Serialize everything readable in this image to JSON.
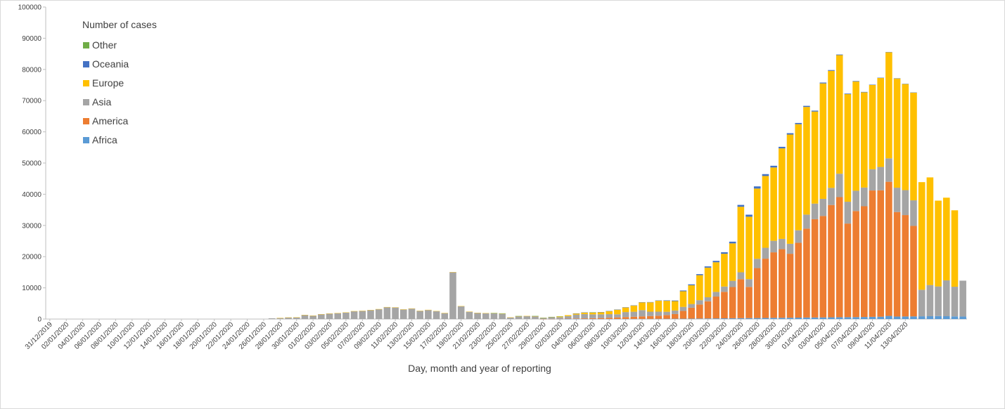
{
  "chart_data": {
    "type": "bar",
    "stacked": true,
    "title": "",
    "xlabel": "Day, month and year of reporting",
    "ylabel": "",
    "ylim": [
      0,
      100000
    ],
    "yticks": [
      0,
      10000,
      20000,
      30000,
      40000,
      50000,
      60000,
      70000,
      80000,
      90000,
      100000
    ],
    "grid": false,
    "legend_title": "Number of cases",
    "legend_placement": "top-left",
    "start_date": "31/12/2019",
    "x_tick_labels": [
      "31/12/2019",
      "02/01/2020",
      "04/01/2020",
      "06/01/2020",
      "08/01/2020",
      "10/01/2020",
      "12/01/2020",
      "14/01/2020",
      "16/01/2020",
      "18/01/2020",
      "20/01/2020",
      "22/01/2020",
      "24/01/2020",
      "26/01/2020",
      "28/01/2020",
      "30/01/2020",
      "01/02/2020",
      "03/02/2020",
      "05/02/2020",
      "07/02/2020",
      "09/02/2020",
      "11/02/2020",
      "13/02/2020",
      "15/02/2020",
      "17/02/2020",
      "19/02/2020",
      "21/02/2020",
      "23/02/2020",
      "25/02/2020",
      "27/02/2020",
      "29/02/2020",
      "02/03/2020",
      "04/03/2020",
      "06/03/2020",
      "08/03/2020",
      "10/03/2020",
      "12/03/2020",
      "14/03/2020",
      "16/03/2020",
      "18/03/2020",
      "20/03/2020",
      "22/03/2020",
      "24/03/2020",
      "26/03/2020",
      "28/03/2020",
      "30/03/2020",
      "01/04/2020",
      "03/04/2020",
      "05/04/2020",
      "07/04/2020",
      "09/04/2020",
      "11/04/2020",
      "13/04/2020"
    ],
    "series": [
      {
        "name": "Africa",
        "color": "#5b9bd5",
        "values": [
          0,
          0,
          0,
          0,
          0,
          0,
          0,
          0,
          0,
          0,
          0,
          0,
          0,
          0,
          0,
          0,
          0,
          0,
          0,
          0,
          0,
          0,
          0,
          0,
          0,
          0,
          0,
          0,
          0,
          0,
          0,
          0,
          0,
          0,
          0,
          0,
          0,
          0,
          0,
          0,
          0,
          0,
          0,
          0,
          0,
          0,
          0,
          0,
          0,
          0,
          0,
          0,
          0,
          0,
          0,
          0,
          0,
          0,
          0,
          0,
          1,
          1,
          2,
          3,
          5,
          5,
          10,
          15,
          20,
          25,
          30,
          40,
          50,
          60,
          70,
          80,
          90,
          100,
          120,
          150,
          180,
          200,
          220,
          250,
          280,
          300,
          320,
          350,
          380,
          400,
          420,
          450,
          480,
          500,
          520,
          550,
          580,
          600,
          620,
          650,
          700,
          750,
          1000,
          800,
          820,
          850,
          880,
          900,
          950,
          900,
          850,
          800
        ]
      },
      {
        "name": "America",
        "color": "#ed7d31",
        "values": [
          0,
          0,
          0,
          0,
          0,
          0,
          0,
          0,
          0,
          0,
          0,
          0,
          0,
          0,
          0,
          0,
          0,
          0,
          0,
          0,
          0,
          0,
          0,
          0,
          0,
          0,
          0,
          0,
          0,
          0,
          0,
          0,
          0,
          0,
          0,
          0,
          0,
          0,
          0,
          0,
          0,
          0,
          0,
          0,
          0,
          0,
          0,
          0,
          0,
          0,
          0,
          0,
          0,
          0,
          0,
          0,
          0,
          0,
          0,
          0,
          20,
          30,
          50,
          100,
          150,
          200,
          250,
          300,
          400,
          500,
          600,
          700,
          800,
          900,
          1000,
          1200,
          1500,
          2500,
          3500,
          4500,
          5500,
          7000,
          8500,
          10000,
          12500,
          10000,
          16000,
          19000,
          21000,
          22000,
          20500,
          24000,
          28500,
          31500,
          32500,
          36000,
          38500,
          30000,
          34000,
          35500,
          40500,
          40500,
          43000,
          33500,
          32500,
          29000
        ]
      },
      {
        "name": "Asia",
        "color": "#a5a5a5",
        "values": [
          0,
          0,
          0,
          0,
          0,
          0,
          0,
          0,
          0,
          0,
          0,
          0,
          0,
          0,
          0,
          0,
          0,
          0,
          0,
          0,
          0,
          0,
          0,
          0,
          0,
          0,
          0,
          250,
          350,
          500,
          550,
          1300,
          1100,
          1550,
          1750,
          1900,
          2100,
          2500,
          2600,
          2850,
          3150,
          3800,
          3700,
          3050,
          3350,
          2600,
          2900,
          2500,
          1900,
          15000,
          4100,
          2350,
          1950,
          1850,
          1850,
          1700,
          500,
          900,
          950,
          900,
          350,
          550,
          550,
          850,
          1250,
          1400,
          1250,
          1200,
          1150,
          1000,
          1600,
          1600,
          2000,
          1400,
          1300,
          1050,
          1150,
          1300,
          1200,
          1400,
          1300,
          1500,
          1700,
          2000,
          2200,
          2500,
          3000,
          3500,
          3700,
          3300,
          3200,
          4000,
          4500,
          5000,
          5500,
          5500,
          7500,
          7000,
          6500,
          6000,
          6800,
          7500,
          7500,
          7800,
          8000,
          8200,
          8500,
          10000,
          9500,
          11500,
          9500,
          11500
        ]
      },
      {
        "name": "Europe",
        "color": "#ffc000",
        "values": [
          0,
          0,
          0,
          0,
          0,
          0,
          0,
          0,
          0,
          0,
          0,
          0,
          0,
          0,
          0,
          0,
          0,
          0,
          0,
          0,
          0,
          0,
          0,
          0,
          0,
          0,
          0,
          0,
          5,
          10,
          15,
          20,
          20,
          25,
          30,
          30,
          35,
          40,
          50,
          50,
          50,
          50,
          60,
          60,
          60,
          60,
          60,
          60,
          50,
          50,
          50,
          40,
          40,
          40,
          40,
          40,
          30,
          30,
          30,
          30,
          30,
          100,
          200,
          300,
          400,
          500,
          600,
          700,
          1000,
          1500,
          1500,
          2000,
          2500,
          3000,
          3500,
          3500,
          3000,
          5000,
          6000,
          8000,
          9500,
          9500,
          10500,
          12000,
          21000,
          20000,
          22500,
          23000,
          23500,
          29000,
          35000,
          34000,
          34500,
          29500,
          37000,
          37500,
          38000,
          34500,
          35000,
          30500,
          27000,
          28500,
          34000,
          35000,
          34000,
          34500,
          34500,
          34500,
          27500,
          26500,
          24500
        ]
      },
      {
        "name": "Oceania",
        "color": "#4472c4",
        "values": [
          0,
          0,
          0,
          0,
          0,
          0,
          0,
          0,
          0,
          0,
          0,
          0,
          0,
          0,
          0,
          0,
          0,
          0,
          0,
          0,
          0,
          0,
          0,
          0,
          0,
          0,
          0,
          0,
          0,
          0,
          0,
          0,
          0,
          0,
          0,
          0,
          0,
          0,
          0,
          0,
          0,
          0,
          0,
          0,
          0,
          0,
          0,
          0,
          0,
          0,
          0,
          0,
          0,
          0,
          0,
          0,
          0,
          0,
          0,
          0,
          0,
          0,
          0,
          0,
          5,
          5,
          10,
          10,
          20,
          30,
          40,
          50,
          60,
          80,
          100,
          150,
          200,
          250,
          300,
          350,
          400,
          450,
          500,
          550,
          600,
          650,
          700,
          600,
          550,
          500,
          450,
          400,
          350,
          300,
          280,
          250,
          200,
          180,
          160,
          140,
          120,
          100,
          100,
          90,
          80,
          70
        ]
      },
      {
        "name": "Other",
        "color": "#70ad47",
        "values": [
          0,
          0,
          0,
          0,
          0,
          0,
          0,
          0,
          0,
          0,
          0,
          0,
          0,
          0,
          0,
          0,
          0,
          0,
          0,
          0,
          0,
          0,
          0,
          0,
          0,
          0,
          0,
          0,
          0,
          0,
          0,
          0,
          0,
          0,
          0,
          0,
          0,
          0,
          0,
          0,
          0,
          0,
          0,
          0,
          0,
          0,
          0,
          0,
          0,
          0,
          0,
          0,
          0,
          0,
          61,
          99,
          0,
          44,
          0,
          60,
          13,
          14,
          70,
          0,
          0,
          0,
          40,
          0,
          0,
          0,
          0,
          0,
          0,
          0,
          0,
          0,
          0,
          0,
          0,
          0,
          0,
          0,
          0,
          0,
          0,
          0,
          0,
          0,
          0,
          0,
          0,
          0,
          0,
          0,
          0,
          0,
          0,
          0,
          0,
          0,
          0,
          0,
          0,
          0,
          0,
          0,
          0,
          0,
          0,
          0,
          0,
          0
        ]
      }
    ],
    "legend_order": [
      "Other",
      "Oceania",
      "Europe",
      "Asia",
      "America",
      "Africa"
    ]
  }
}
